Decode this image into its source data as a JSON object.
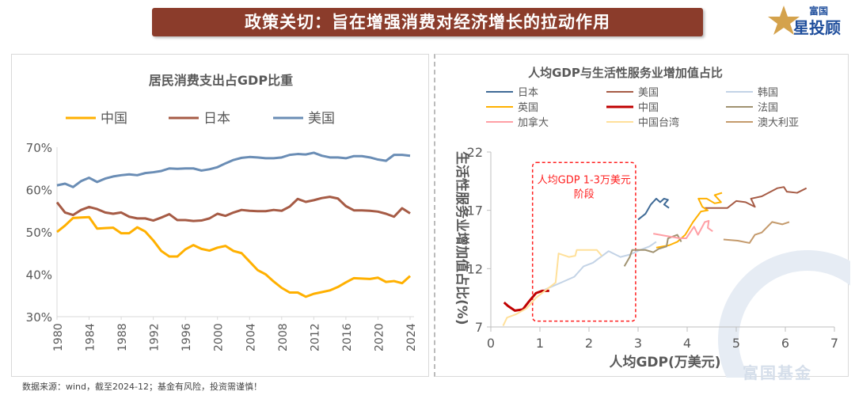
{
  "banner": {
    "title": "政策关切：旨在增强消费对经济增长的拉动作用"
  },
  "logo": {
    "text_top": "富国",
    "text_main": "星投顾"
  },
  "watermark": "富国基金",
  "footer": "数据来源：wind，截至2024-12；基金有风险，投资需谨慎！",
  "chart_data": [
    {
      "type": "line",
      "title": "居民消费支出占GDP比重",
      "xlabel": "",
      "ylabel": "",
      "ylim": [
        30,
        70
      ],
      "yticks": [
        "30%",
        "40%",
        "50%",
        "60%",
        "70%"
      ],
      "xticks": [
        "1980",
        "1984",
        "1988",
        "1992",
        "1996",
        "2000",
        "2004",
        "2008",
        "2012",
        "2016",
        "2020",
        "2024"
      ],
      "legend": "top",
      "grid": false,
      "x": [
        1980,
        1981,
        1982,
        1983,
        1984,
        1985,
        1986,
        1987,
        1988,
        1989,
        1990,
        1991,
        1992,
        1993,
        1994,
        1995,
        1996,
        1997,
        1998,
        1999,
        2000,
        2001,
        2002,
        2003,
        2004,
        2005,
        2006,
        2007,
        2008,
        2009,
        2010,
        2011,
        2012,
        2013,
        2014,
        2015,
        2016,
        2017,
        2018,
        2019,
        2020,
        2021,
        2022,
        2023,
        2024
      ],
      "series": [
        {
          "name": "中国",
          "color": "#ffb000",
          "values": [
            50.0,
            51.5,
            53.3,
            53.4,
            53.5,
            50.8,
            50.9,
            51.0,
            49.7,
            49.7,
            51.1,
            50.1,
            48.0,
            45.5,
            44.2,
            44.2,
            45.9,
            46.9,
            46.0,
            45.6,
            46.3,
            46.7,
            45.5,
            45.0,
            43.0,
            41.0,
            40.0,
            38.3,
            36.8,
            35.7,
            35.7,
            34.7,
            35.4,
            35.8,
            36.2,
            37.0,
            38.1,
            39.1,
            39.0,
            38.9,
            39.2,
            38.2,
            38.4,
            37.9,
            39.6
          ]
        },
        {
          "name": "日本",
          "color": "#a65b45",
          "values": [
            57.0,
            54.6,
            54.0,
            55.2,
            55.9,
            55.4,
            54.6,
            54.3,
            54.6,
            53.6,
            53.2,
            53.2,
            52.7,
            53.4,
            54.2,
            52.8,
            52.8,
            52.6,
            52.7,
            53.2,
            54.3,
            53.8,
            54.6,
            55.2,
            55.0,
            54.9,
            54.9,
            55.2,
            55.0,
            56.0,
            57.8,
            57.1,
            57.5,
            58.0,
            58.3,
            57.9,
            56.1,
            55.1,
            55.1,
            55.0,
            54.8,
            54.3,
            53.6,
            55.6,
            54.4
          ]
        },
        {
          "name": "美国",
          "color": "#6a8db5",
          "values": [
            61.0,
            61.4,
            60.6,
            62.0,
            62.8,
            61.8,
            62.6,
            63.1,
            63.4,
            63.6,
            63.4,
            63.9,
            64.1,
            64.4,
            65.0,
            64.9,
            65.0,
            65.0,
            64.5,
            64.8,
            65.3,
            66.2,
            67.0,
            67.5,
            67.7,
            67.6,
            67.4,
            67.4,
            67.6,
            68.2,
            68.4,
            68.3,
            68.7,
            68.0,
            67.6,
            67.6,
            67.4,
            67.9,
            67.9,
            67.6,
            67.1,
            66.8,
            68.2,
            68.2,
            68.0
          ]
        }
      ]
    },
    {
      "type": "line",
      "title": "人均GDP与生活性服务业增加值占比",
      "xlabel": "人均GDP(万美元)",
      "ylabel": "生活性服务业增加值占比(%)",
      "xlim": [
        0,
        7
      ],
      "ylim": [
        7,
        22
      ],
      "xticks": [
        "0",
        "1",
        "2",
        "3",
        "4",
        "5",
        "6",
        "7"
      ],
      "yticks": [
        "7",
        "12",
        "17",
        "22"
      ],
      "legend": "top",
      "grid": false,
      "annotation": {
        "line1": "人均GDP 1-3万美元",
        "line2": "阶段",
        "x_range": [
          0.85,
          2.95
        ],
        "y_range": [
          7.5,
          21.1
        ],
        "color": "#ff2020"
      },
      "series": [
        {
          "name": "日本",
          "color": "#3f6a96",
          "points": [
            [
              3.0,
              16.2
            ],
            [
              3.15,
              16.7
            ],
            [
              3.26,
              17.5
            ],
            [
              3.37,
              18.0
            ],
            [
              3.45,
              17.7
            ],
            [
              3.53,
              18.0
            ],
            [
              3.61,
              17.9
            ],
            [
              3.53,
              17.5
            ],
            [
              3.63,
              17.2
            ]
          ]
        },
        {
          "name": "美国",
          "color": "#a65b45",
          "points": [
            [
              4.36,
              17.2
            ],
            [
              4.82,
              17.2
            ],
            [
              5.0,
              17.8
            ],
            [
              5.19,
              17.7
            ],
            [
              5.38,
              17.3
            ],
            [
              5.3,
              18.0
            ],
            [
              5.52,
              18.2
            ],
            [
              5.84,
              18.9
            ],
            [
              5.97,
              19.0
            ],
            [
              6.03,
              18.6
            ],
            [
              6.24,
              18.5
            ],
            [
              6.43,
              18.9
            ]
          ]
        },
        {
          "name": "韩国",
          "color": "#c3d3e6",
          "points": [
            [
              1.1,
              10.2
            ],
            [
              1.43,
              10.8
            ],
            [
              1.7,
              11.3
            ],
            [
              1.89,
              12.2
            ],
            [
              2.08,
              12.5
            ],
            [
              2.4,
              13.5
            ],
            [
              2.64,
              13.0
            ],
            [
              2.83,
              13.2
            ],
            [
              3.04,
              13.6
            ],
            [
              3.23,
              13.9
            ],
            [
              3.37,
              14.3
            ]
          ]
        },
        {
          "name": "英国",
          "color": "#ffb000",
          "points": [
            [
              3.37,
              13.8
            ],
            [
              3.63,
              14.0
            ],
            [
              3.8,
              14.3
            ],
            [
              3.96,
              14.9
            ],
            [
              4.12,
              16.0
            ],
            [
              4.28,
              16.9
            ],
            [
              4.42,
              17.0
            ],
            [
              4.31,
              17.3
            ],
            [
              4.23,
              18.0
            ],
            [
              4.4,
              18.0
            ],
            [
              4.56,
              17.6
            ],
            [
              4.69,
              17.7
            ],
            [
              4.56,
              18.3
            ],
            [
              4.71,
              18.5
            ]
          ]
        },
        {
          "name": "中国",
          "color": "#c00000",
          "points": [
            [
              0.27,
              9.1
            ],
            [
              0.35,
              8.8
            ],
            [
              0.49,
              8.4
            ],
            [
              0.65,
              8.5
            ],
            [
              0.78,
              9.2
            ],
            [
              0.92,
              9.9
            ],
            [
              1.05,
              10.1
            ],
            [
              1.19,
              10.1
            ]
          ]
        },
        {
          "name": "法国",
          "color": "#a09270",
          "points": [
            [
              2.72,
              12.2
            ],
            [
              2.83,
              13.0
            ],
            [
              2.88,
              13.6
            ],
            [
              3.15,
              13.6
            ],
            [
              3.31,
              13.4
            ],
            [
              3.42,
              13.7
            ],
            [
              3.58,
              13.9
            ],
            [
              3.61,
              14.6
            ],
            [
              3.8,
              14.9
            ],
            [
              3.88,
              14.3
            ]
          ]
        },
        {
          "name": "加拿大",
          "color": "#ff9fa5",
          "points": [
            [
              3.31,
              15.0
            ],
            [
              3.58,
              14.8
            ],
            [
              3.85,
              14.6
            ],
            [
              3.98,
              14.6
            ],
            [
              4.14,
              15.6
            ],
            [
              4.22,
              14.9
            ],
            [
              4.36,
              16.0
            ],
            [
              4.44,
              16.1
            ],
            [
              4.42,
              15.5
            ],
            [
              4.52,
              15.2
            ]
          ]
        },
        {
          "name": "中国台湾",
          "color": "#ffe09a",
          "points": [
            [
              0.25,
              7.1
            ],
            [
              0.33,
              7.8
            ],
            [
              0.52,
              8.1
            ],
            [
              0.73,
              8.6
            ],
            [
              0.92,
              9.5
            ],
            [
              1.1,
              10.1
            ],
            [
              1.32,
              10.8
            ],
            [
              1.38,
              13.3
            ],
            [
              1.59,
              13.0
            ],
            [
              1.72,
              13.1
            ],
            [
              1.75,
              13.6
            ],
            [
              2.08,
              13.6
            ],
            [
              2.16,
              13.6
            ],
            [
              2.26,
              13.1
            ]
          ]
        },
        {
          "name": "澳大利亚",
          "color": "#c49a6c",
          "points": [
            [
              4.74,
              14.5
            ],
            [
              5.03,
              14.4
            ],
            [
              5.27,
              14.2
            ],
            [
              5.38,
              14.9
            ],
            [
              5.52,
              15.1
            ],
            [
              5.73,
              16.0
            ],
            [
              5.94,
              15.8
            ],
            [
              6.08,
              16.0
            ]
          ]
        }
      ]
    }
  ]
}
